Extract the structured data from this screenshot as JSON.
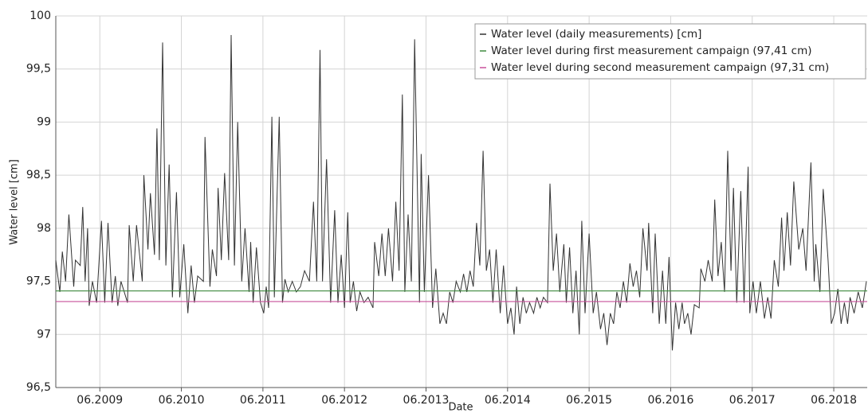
{
  "chart_data": {
    "type": "line",
    "xlabel": "Date",
    "ylabel": "Water level [cm]",
    "xlim": [
      2008.88,
      2018.83
    ],
    "ylim": [
      96.5,
      100
    ],
    "xticks": [
      {
        "value": 2009.42,
        "label": "06.2009"
      },
      {
        "value": 2010.42,
        "label": "06.2010"
      },
      {
        "value": 2011.42,
        "label": "06.2011"
      },
      {
        "value": 2012.42,
        "label": "06.2012"
      },
      {
        "value": 2013.42,
        "label": "06.2013"
      },
      {
        "value": 2014.42,
        "label": "06.2014"
      },
      {
        "value": 2015.42,
        "label": "06.2015"
      },
      {
        "value": 2016.42,
        "label": "06.2016"
      },
      {
        "value": 2017.42,
        "label": "06.2017"
      },
      {
        "value": 2018.42,
        "label": "06.2018"
      }
    ],
    "yticks": [
      {
        "value": 96.5,
        "label": "96,5"
      },
      97,
      {
        "value": 97.5,
        "label": "97,5"
      },
      98,
      {
        "value": 98.5,
        "label": "98,5"
      },
      99,
      {
        "value": 99.5,
        "label": "99,5"
      },
      100
    ],
    "grid": true,
    "legend": "upper right",
    "x": [
      2008.88,
      2008.93,
      2008.96,
      2009.0,
      2009.04,
      2009.1,
      2009.12,
      2009.18,
      2009.21,
      2009.24,
      2009.27,
      2009.29,
      2009.33,
      2009.38,
      2009.44,
      2009.48,
      2009.52,
      2009.57,
      2009.61,
      2009.64,
      2009.68,
      2009.76,
      2009.78,
      2009.83,
      2009.87,
      2009.94,
      2009.96,
      2010.01,
      2010.04,
      2010.09,
      2010.12,
      2010.15,
      2010.19,
      2010.23,
      2010.27,
      2010.31,
      2010.36,
      2010.4,
      2010.45,
      2010.5,
      2010.54,
      2010.58,
      2010.62,
      2010.69,
      2010.71,
      2010.77,
      2010.8,
      2010.85,
      2010.87,
      2010.91,
      2010.95,
      2011.0,
      2011.03,
      2011.07,
      2011.11,
      2011.16,
      2011.2,
      2011.25,
      2011.27,
      2011.3,
      2011.34,
      2011.39,
      2011.43,
      2011.46,
      2011.49,
      2011.53,
      2011.56,
      2011.62,
      2011.66,
      2011.69,
      2011.73,
      2011.78,
      2011.83,
      2011.88,
      2011.93,
      2011.99,
      2012.04,
      2012.08,
      2012.12,
      2012.15,
      2012.2,
      2012.25,
      2012.3,
      2012.34,
      2012.38,
      2012.42,
      2012.46,
      2012.49,
      2012.53,
      2012.57,
      2012.61,
      2012.66,
      2012.71,
      2012.77,
      2012.79,
      2012.84,
      2012.88,
      2012.92,
      2012.96,
      2013.01,
      2013.05,
      2013.09,
      2013.13,
      2013.16,
      2013.2,
      2013.24,
      2013.28,
      2013.34,
      2013.36,
      2013.4,
      2013.45,
      2013.5,
      2013.54,
      2013.59,
      2013.63,
      2013.67,
      2013.71,
      2013.75,
      2013.79,
      2013.84,
      2013.88,
      2013.92,
      2013.96,
      2014.0,
      2014.04,
      2014.08,
      2014.12,
      2014.16,
      2014.2,
      2014.24,
      2014.28,
      2014.33,
      2014.37,
      2014.42,
      2014.46,
      2014.5,
      2014.53,
      2014.57,
      2014.61,
      2014.65,
      2014.69,
      2014.74,
      2014.78,
      2014.82,
      2014.86,
      2014.91,
      2014.94,
      2014.98,
      2015.02,
      2015.06,
      2015.11,
      2015.14,
      2015.18,
      2015.22,
      2015.26,
      2015.3,
      2015.33,
      2015.37,
      2015.42,
      2015.47,
      2015.51,
      2015.56,
      2015.6,
      2015.64,
      2015.68,
      2015.72,
      2015.76,
      2015.8,
      2015.84,
      2015.88,
      2015.92,
      2015.96,
      2016.0,
      2016.04,
      2016.08,
      2016.13,
      2016.15,
      2016.2,
      2016.23,
      2016.28,
      2016.32,
      2016.36,
      2016.4,
      2016.44,
      2016.48,
      2016.52,
      2016.56,
      2016.59,
      2016.63,
      2016.67,
      2016.71,
      2016.77,
      2016.79,
      2016.84,
      2016.88,
      2016.93,
      2016.96,
      2017.0,
      2017.04,
      2017.08,
      2017.12,
      2017.16,
      2017.19,
      2017.23,
      2017.28,
      2017.32,
      2017.37,
      2017.39,
      2017.43,
      2017.47,
      2017.52,
      2017.57,
      2017.61,
      2017.65,
      2017.69,
      2017.74,
      2017.78,
      2017.81,
      2017.85,
      2017.89,
      2017.93,
      2017.99,
      2018.04,
      2018.08,
      2018.14,
      2018.18,
      2018.2,
      2018.25,
      2018.29,
      2018.35,
      2018.39,
      2018.43,
      2018.47,
      2018.51,
      2018.55,
      2018.59,
      2018.62,
      2018.67,
      2018.72,
      2018.77,
      2018.82
    ],
    "series": [
      {
        "name": "Water level (daily measurements) [cm]",
        "color": "#333333",
        "values": [
          97.7,
          97.4,
          97.78,
          97.5,
          98.13,
          97.45,
          97.7,
          97.65,
          98.2,
          97.5,
          98.0,
          97.27,
          97.5,
          97.3,
          98.07,
          97.3,
          98.05,
          97.3,
          97.55,
          97.27,
          97.5,
          97.3,
          98.03,
          97.5,
          98.03,
          97.5,
          98.5,
          97.8,
          98.33,
          97.75,
          98.94,
          97.7,
          99.75,
          97.65,
          98.6,
          97.35,
          98.34,
          97.35,
          97.85,
          97.2,
          97.65,
          97.3,
          97.55,
          97.5,
          98.86,
          97.45,
          97.8,
          97.55,
          98.38,
          97.7,
          98.52,
          97.7,
          99.82,
          97.65,
          99.0,
          97.5,
          98.0,
          97.4,
          97.87,
          97.3,
          97.82,
          97.3,
          97.2,
          97.45,
          97.25,
          99.05,
          97.35,
          99.05,
          97.3,
          97.52,
          97.4,
          97.5,
          97.4,
          97.45,
          97.6,
          97.5,
          98.25,
          97.5,
          99.68,
          97.5,
          98.65,
          97.3,
          98.17,
          97.3,
          97.75,
          97.25,
          98.15,
          97.3,
          97.5,
          97.22,
          97.4,
          97.3,
          97.35,
          97.25,
          97.87,
          97.55,
          97.95,
          97.55,
          98.0,
          97.5,
          98.25,
          97.6,
          99.26,
          97.4,
          98.13,
          97.5,
          99.78,
          97.3,
          98.7,
          97.4,
          98.5,
          97.25,
          97.62,
          97.1,
          97.2,
          97.1,
          97.4,
          97.3,
          97.5,
          97.4,
          97.57,
          97.4,
          97.6,
          97.45,
          98.05,
          97.65,
          98.73,
          97.6,
          97.8,
          97.3,
          97.8,
          97.2,
          97.65,
          97.1,
          97.25,
          97.0,
          97.45,
          97.1,
          97.35,
          97.2,
          97.3,
          97.2,
          97.35,
          97.25,
          97.35,
          97.3,
          98.42,
          97.6,
          97.95,
          97.4,
          97.85,
          97.3,
          97.82,
          97.2,
          97.6,
          97.0,
          98.07,
          97.2,
          97.95,
          97.2,
          97.4,
          97.05,
          97.2,
          96.9,
          97.2,
          97.1,
          97.4,
          97.25,
          97.5,
          97.3,
          97.67,
          97.45,
          97.6,
          97.35,
          98.0,
          97.6,
          98.05,
          97.2,
          97.95,
          97.1,
          97.6,
          97.1,
          97.73,
          96.85,
          97.3,
          97.05,
          97.3,
          97.1,
          97.2,
          97.0,
          97.28,
          97.25,
          97.62,
          97.5,
          97.7,
          97.5,
          98.27,
          97.55,
          97.87,
          97.4,
          98.73,
          97.6,
          98.38,
          97.3,
          98.35,
          97.3,
          98.58,
          97.2,
          97.5,
          97.2,
          97.5,
          97.15,
          97.35,
          97.15,
          97.7,
          97.45,
          98.1,
          97.6,
          98.15,
          97.65,
          98.44,
          97.8,
          98.0,
          97.6,
          98.62,
          97.5,
          97.85,
          97.4,
          98.37,
          97.7,
          97.1,
          97.2,
          97.43,
          97.1,
          97.3,
          97.1,
          97.35,
          97.2,
          97.4,
          97.25,
          97.5
        ]
      }
    ],
    "reference_lines": [
      {
        "name": "Water level during first measurement campaign (97,41 cm)",
        "color": "#3f8a3f",
        "value": 97.41
      },
      {
        "name": "Water level during second measurement campaign (97,31 cm)",
        "color": "#c8509a",
        "value": 97.31
      }
    ]
  }
}
